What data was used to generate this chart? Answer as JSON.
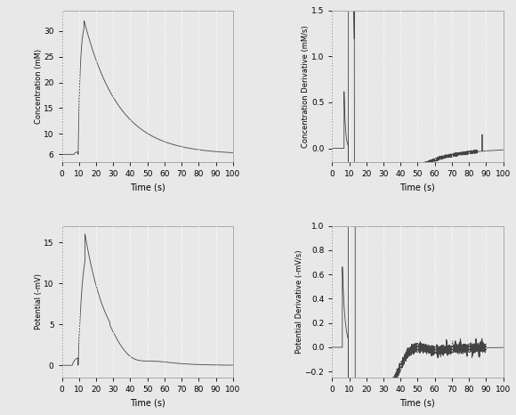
{
  "bg_color": "#e8e8e8",
  "plot_bg": "#e8e8e8",
  "line_color": "#444444",
  "grid_color": "#ffffff",
  "xlim": [
    0,
    100
  ],
  "xticks": [
    0,
    10,
    20,
    30,
    40,
    50,
    60,
    70,
    80,
    90,
    100
  ],
  "xlabel": "Time (s)",
  "subplot1": {
    "ylabel": "Concentration (mM)",
    "ylim": [
      4.5,
      34
    ],
    "yticks": [
      6,
      10,
      15,
      20,
      25,
      30
    ]
  },
  "subplot2": {
    "ylabel": "Concentration Derivative (mM/s)",
    "ylim": [
      -0.15,
      1.5
    ],
    "yticks": [
      0.0,
      0.5,
      1.0,
      1.5
    ]
  },
  "subplot3": {
    "ylabel": "Potential (-mV)",
    "ylim": [
      -1.5,
      17
    ],
    "yticks": [
      0,
      5,
      10,
      15
    ]
  },
  "subplot4": {
    "ylabel": "Potential Derivative (-mV/s)",
    "ylim": [
      -0.25,
      1.0
    ],
    "yticks": [
      -0.2,
      0.0,
      0.2,
      0.4,
      0.6,
      0.8,
      1.0
    ]
  }
}
